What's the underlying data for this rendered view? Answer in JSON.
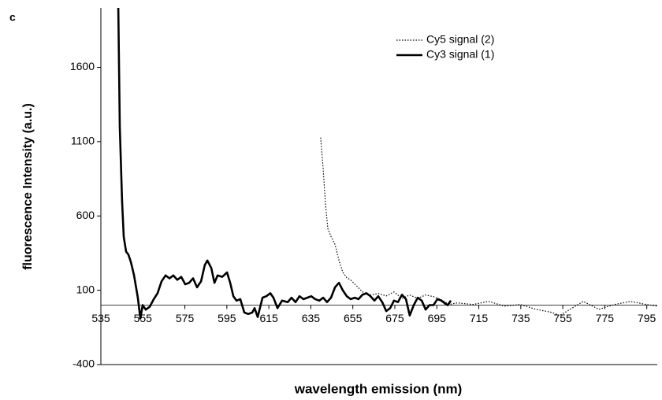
{
  "chart_data": {
    "type": "line",
    "panel_label": "c",
    "xlabel": "wavelength emission (nm)",
    "ylabel": "fluorescence Intensity (a.u.)",
    "xlim": [
      535,
      800
    ],
    "ylim": [
      -400,
      2000
    ],
    "xticks": [
      535,
      555,
      575,
      595,
      615,
      635,
      655,
      675,
      695,
      715,
      735,
      755,
      775,
      795
    ],
    "yticks": [
      -400,
      100,
      600,
      1100,
      1600
    ],
    "legend": "upper right",
    "series": [
      {
        "name": "Cy5 signal (2)",
        "color": "#000000",
        "style": "dotted",
        "x": [
          639.7,
          640.9,
          642,
          643.1,
          644.6,
          646.5,
          648.4,
          650.2,
          652.1,
          654,
          655.9,
          657.7,
          659.6,
          663.4,
          667.1,
          670.9,
          674.6,
          678.4,
          682.1,
          685.9,
          689.7,
          693.4,
          697.2,
          700.9,
          704.7,
          712.2,
          719.7,
          727.2,
          734.7,
          742.2,
          749.7,
          753.5,
          757.2,
          764.7,
          772.2,
          779.7,
          787.3,
          794.8,
          800
        ],
        "values": [
          1127,
          914,
          674,
          515,
          462,
          408,
          302,
          222,
          185,
          169,
          142,
          116,
          89,
          68,
          78,
          62,
          89,
          46,
          68,
          46,
          68,
          57,
          36,
          4,
          15,
          4,
          25,
          -7,
          4,
          -28,
          -49,
          -70,
          -39,
          25,
          -28,
          4,
          25,
          4,
          -7
        ]
      },
      {
        "name": "Cy3 signal (1)",
        "color": "#000000",
        "style": "solid",
        "x": [
          543.3,
          544,
          545.1,
          545.9,
          547,
          548.1,
          549.3,
          550.8,
          552.6,
          553.8,
          554.9,
          556.4,
          558.3,
          560.2,
          562,
          563.9,
          565.8,
          567.7,
          569.5,
          571.4,
          573.3,
          575.2,
          577,
          578.9,
          580.8,
          582.7,
          584.5,
          585.7,
          587.6,
          589.1,
          590.6,
          592.8,
          595.1,
          596.6,
          598.1,
          599.6,
          601.4,
          603.3,
          605.2,
          607.1,
          608.2,
          609.7,
          612,
          613.8,
          615.7,
          617.2,
          619.1,
          621.3,
          624,
          625.8,
          627.7,
          629.6,
          631.5,
          633.3,
          635.2,
          637.1,
          639,
          640.9,
          642.7,
          644.6,
          646.5,
          648.4,
          650.2,
          652.1,
          654,
          655.9,
          657.7,
          659.6,
          661.5,
          663.4,
          665.3,
          667.1,
          669,
          670.9,
          672.8,
          674.6,
          676.5,
          678.4,
          680.3,
          682.1,
          684,
          685.9,
          687.8,
          689.7,
          691.5,
          693.4,
          695.3,
          697.2,
          699,
          700.2,
          701.7
        ],
        "values": [
          2000,
          1200,
          700,
          460,
          360,
          340,
          290,
          200,
          50,
          -90,
          0,
          -30,
          -10,
          40,
          80,
          160,
          200,
          180,
          200,
          170,
          190,
          140,
          150,
          180,
          120,
          160,
          270,
          300,
          250,
          150,
          200,
          190,
          220,
          150,
          60,
          30,
          40,
          -50,
          -60,
          -50,
          -20,
          -80,
          50,
          60,
          80,
          50,
          -20,
          30,
          20,
          50,
          20,
          60,
          40,
          50,
          60,
          40,
          30,
          50,
          20,
          50,
          120,
          150,
          100,
          60,
          40,
          50,
          40,
          70,
          80,
          60,
          30,
          60,
          20,
          -40,
          -20,
          30,
          20,
          70,
          40,
          -70,
          0,
          50,
          30,
          -30,
          0,
          0,
          40,
          30,
          10,
          0,
          30
        ]
      }
    ]
  }
}
